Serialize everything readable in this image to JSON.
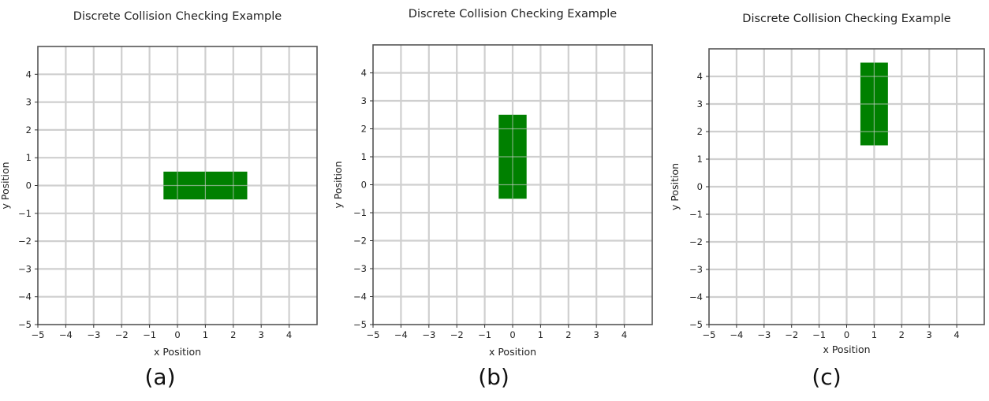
{
  "chart_data": [
    {
      "type": "rectangle-plot",
      "title": "Discrete Collision Checking Example",
      "xlabel": "x Position",
      "ylabel": "y Position",
      "xlim": [
        -5,
        5
      ],
      "ylim": [
        -5,
        5
      ],
      "xticks": [
        -5,
        -4,
        -3,
        -2,
        -1,
        0,
        1,
        2,
        3,
        4
      ],
      "yticks": [
        -5,
        -4,
        -3,
        -2,
        -1,
        0,
        1,
        2,
        3,
        4
      ],
      "grid": true,
      "rectangle": {
        "x": [
          -0.5,
          2.5
        ],
        "y": [
          -0.5,
          0.5
        ],
        "color": "#008000"
      },
      "caption": "(a)"
    },
    {
      "type": "rectangle-plot",
      "title": "Discrete Collision Checking Example",
      "xlabel": "x Position",
      "ylabel": "y Position",
      "xlim": [
        -5,
        5
      ],
      "ylim": [
        -5,
        5
      ],
      "xticks": [
        -5,
        -4,
        -3,
        -2,
        -1,
        0,
        1,
        2,
        3,
        4
      ],
      "yticks": [
        -5,
        -4,
        -3,
        -2,
        -1,
        0,
        1,
        2,
        3,
        4
      ],
      "grid": true,
      "rectangle": {
        "x": [
          -0.5,
          0.5
        ],
        "y": [
          -0.5,
          2.5
        ],
        "color": "#008000"
      },
      "caption": "(b)"
    },
    {
      "type": "rectangle-plot",
      "title": "Discrete Collision Checking Example",
      "xlabel": "x Position",
      "ylabel": "y Position",
      "xlim": [
        -5,
        5
      ],
      "ylim": [
        -5,
        5
      ],
      "xticks": [
        -5,
        -4,
        -3,
        -2,
        -1,
        0,
        1,
        2,
        3,
        4
      ],
      "yticks": [
        -5,
        -4,
        -3,
        -2,
        -1,
        0,
        1,
        2,
        3,
        4
      ],
      "grid": true,
      "rectangle": {
        "x": [
          0.5,
          1.5
        ],
        "y": [
          1.5,
          4.5
        ],
        "color": "#008000"
      },
      "caption": "(c)"
    }
  ]
}
